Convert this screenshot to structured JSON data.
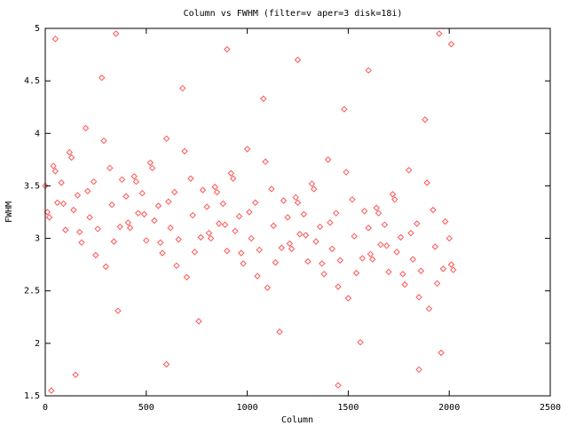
{
  "chart_data": {
    "type": "scatter",
    "title": "Column vs FWHM (filter=v aper=3 disk=18i)",
    "x_label": "Column",
    "y_label": "FWHM",
    "color": "#ff5555",
    "xlim": [
      0,
      2500
    ],
    "xticks": [
      0,
      500,
      1000,
      1500,
      2000,
      2500
    ],
    "ylim": [
      1.5,
      5
    ],
    "yticks": [
      1.5,
      2,
      2.5,
      3,
      3.5,
      4,
      4.5,
      5
    ],
    "x": [
      0,
      20,
      40,
      60,
      80,
      100,
      120,
      140,
      160,
      180,
      200,
      220,
      240,
      260,
      280,
      300,
      320,
      340,
      360,
      380,
      400,
      420,
      440,
      460,
      480,
      500,
      520,
      540,
      560,
      580,
      600,
      620,
      640,
      660,
      680,
      700,
      720,
      740,
      760,
      780,
      800,
      820,
      840,
      860,
      880,
      900,
      920,
      940,
      960,
      980,
      1000,
      1020,
      1040,
      1060,
      1080,
      1100,
      1120,
      1140,
      1160,
      1180,
      1200,
      1220,
      1240,
      1260,
      1280,
      1300,
      1320,
      1340,
      1360,
      1380,
      1400,
      1420,
      1440,
      1460,
      1480,
      1500,
      1520,
      1540,
      1560,
      1580,
      1600,
      1620,
      1640,
      1660,
      1680,
      1700,
      1720,
      1740,
      1760,
      1780,
      1800,
      1820,
      1840,
      1860,
      1880,
      1900,
      1920,
      1940,
      1960,
      1980,
      2000,
      2020,
      10,
      50,
      90,
      130,
      170,
      210,
      250,
      290,
      330,
      370,
      410,
      450,
      490,
      530,
      570,
      610,
      650,
      690,
      730,
      770,
      810,
      850,
      890,
      930,
      970,
      1010,
      1050,
      1090,
      1130,
      1170,
      1210,
      1250,
      1290,
      1330,
      1370,
      1410,
      1450,
      1490,
      1530,
      1570,
      1610,
      1650,
      1690,
      1730,
      1770,
      1810,
      1850,
      1890,
      1930,
      1970,
      2010,
      50,
      350,
      900,
      1250,
      1600,
      1950,
      150,
      600,
      1450,
      1850,
      30,
      2010
    ],
    "values": [
      3.5,
      3.2,
      3.69,
      3.34,
      3.53,
      3.08,
      3.82,
      3.27,
      3.41,
      2.96,
      4.05,
      3.2,
      3.54,
      3.09,
      4.53,
      2.73,
      3.67,
      2.97,
      2.31,
      3.56,
      3.4,
      3.1,
      3.59,
      3.24,
      3.43,
      2.98,
      3.72,
      3.17,
      3.31,
      2.86,
      3.95,
      3.1,
      3.44,
      2.99,
      4.43,
      2.63,
      3.57,
      2.87,
      2.21,
      3.46,
      3.3,
      3.0,
      3.49,
      3.14,
      3.33,
      2.88,
      3.62,
      3.07,
      3.21,
      2.76,
      3.85,
      3.0,
      3.34,
      2.89,
      4.33,
      2.53,
      3.47,
      2.77,
      2.11,
      3.36,
      3.2,
      2.9,
      3.39,
      3.04,
      3.23,
      2.78,
      3.52,
      2.97,
      3.11,
      2.66,
      3.75,
      2.9,
      3.24,
      2.79,
      4.23,
      2.43,
      3.37,
      2.67,
      2.01,
      3.26,
      3.1,
      2.8,
      3.29,
      2.94,
      3.13,
      2.68,
      3.42,
      2.87,
      3.01,
      2.56,
      3.65,
      2.8,
      3.14,
      2.69,
      4.13,
      2.33,
      3.27,
      2.57,
      1.91,
      3.16,
      3.0,
      2.7,
      3.25,
      3.64,
      3.33,
      3.77,
      3.06,
      3.45,
      2.84,
      3.93,
      3.32,
      3.11,
      3.15,
      3.54,
      3.23,
      3.67,
      2.96,
      3.35,
      2.74,
      3.83,
      3.22,
      3.01,
      3.05,
      3.44,
      3.13,
      3.57,
      2.86,
      3.25,
      2.64,
      3.73,
      3.12,
      2.91,
      2.95,
      3.34,
      3.03,
      3.47,
      2.76,
      3.15,
      2.54,
      3.63,
      3.02,
      2.81,
      2.85,
      3.24,
      2.93,
      3.37,
      2.66,
      3.05,
      2.44,
      3.53,
      2.92,
      2.71,
      2.75,
      4.9,
      4.95,
      4.8,
      4.7,
      4.6,
      4.95,
      1.7,
      1.8,
      1.6,
      1.75,
      1.55,
      4.85
    ]
  }
}
